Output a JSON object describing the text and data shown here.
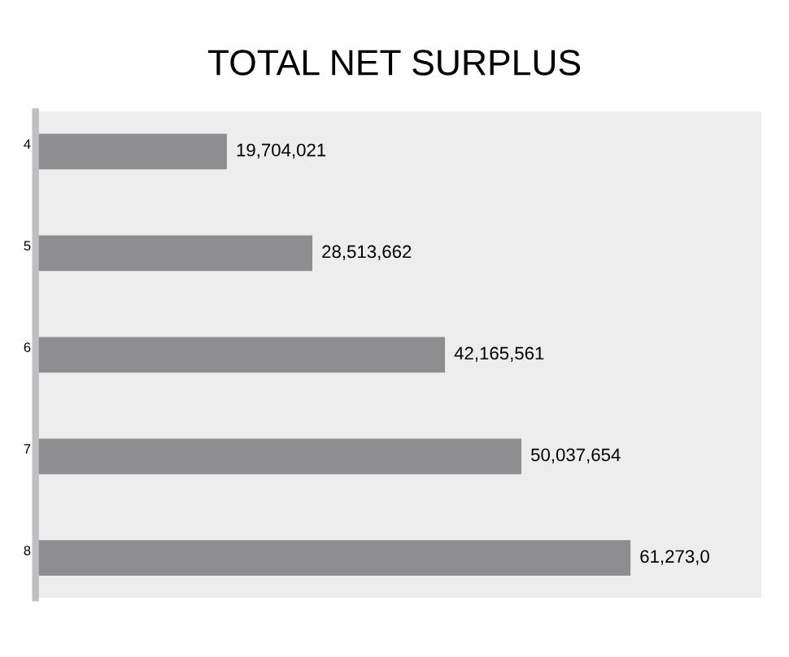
{
  "chart_data": {
    "type": "bar",
    "orientation": "horizontal",
    "title": "TOTAL NET SURPLUS",
    "categories": [
      "4",
      "5",
      "6",
      "7",
      "8"
    ],
    "values": [
      19704021,
      28513662,
      42165561,
      50037654,
      61273000
    ],
    "value_labels": [
      "19,704,021",
      "28,513,662",
      "42,165,561",
      "50,037,654",
      "61,273,0"
    ],
    "color": "#8e8e90",
    "grid": false,
    "legend": false
  }
}
